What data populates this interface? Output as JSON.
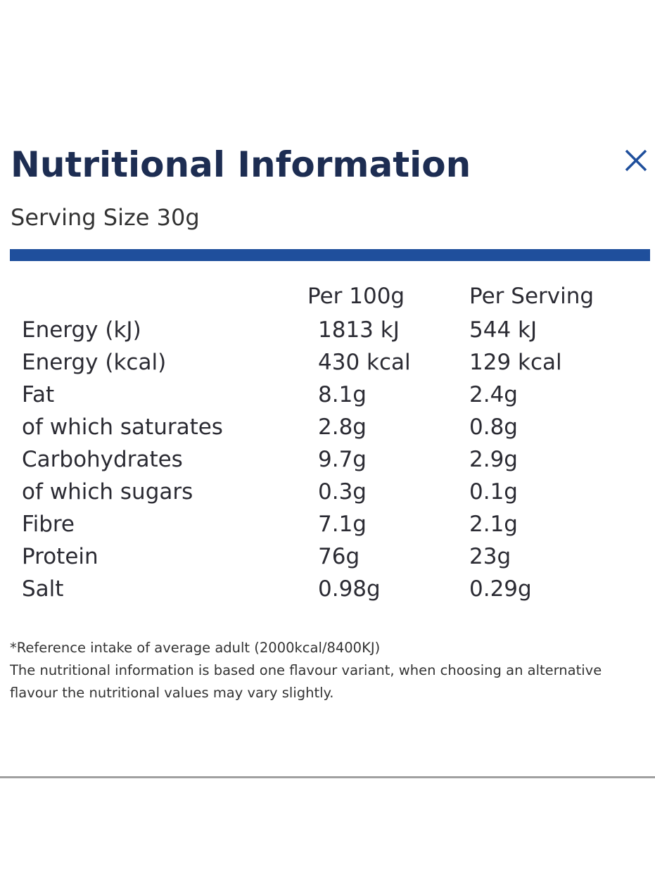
{
  "header": {
    "title": "Nutritional Information",
    "serving": "Serving Size 30g"
  },
  "table": {
    "columns": [
      "Per 100g",
      "Per Serving"
    ],
    "rows": [
      [
        "Energy (kJ)",
        "1813 kJ",
        "544 kJ"
      ],
      [
        "Energy (kcal)",
        "430 kcal",
        "129 kcal"
      ],
      [
        "Fat",
        "8.1g",
        "2.4g"
      ],
      [
        "of which saturates",
        "2.8g",
        "0.8g"
      ],
      [
        "Carbohydrates",
        "9.7g",
        "2.9g"
      ],
      [
        "of which sugars",
        "0.3g",
        "0.1g"
      ],
      [
        "Fibre",
        "7.1g",
        "2.1g"
      ],
      [
        "Protein",
        "76g",
        "23g"
      ],
      [
        "Salt",
        "0.98g",
        "0.29g"
      ]
    ]
  },
  "notes": [
    "*Reference intake of average adult (2000kcal/8400KJ)",
    "The nutritional information is based one flavour variant, when choosing an alternative flavour the nutritional values may vary slightly."
  ]
}
